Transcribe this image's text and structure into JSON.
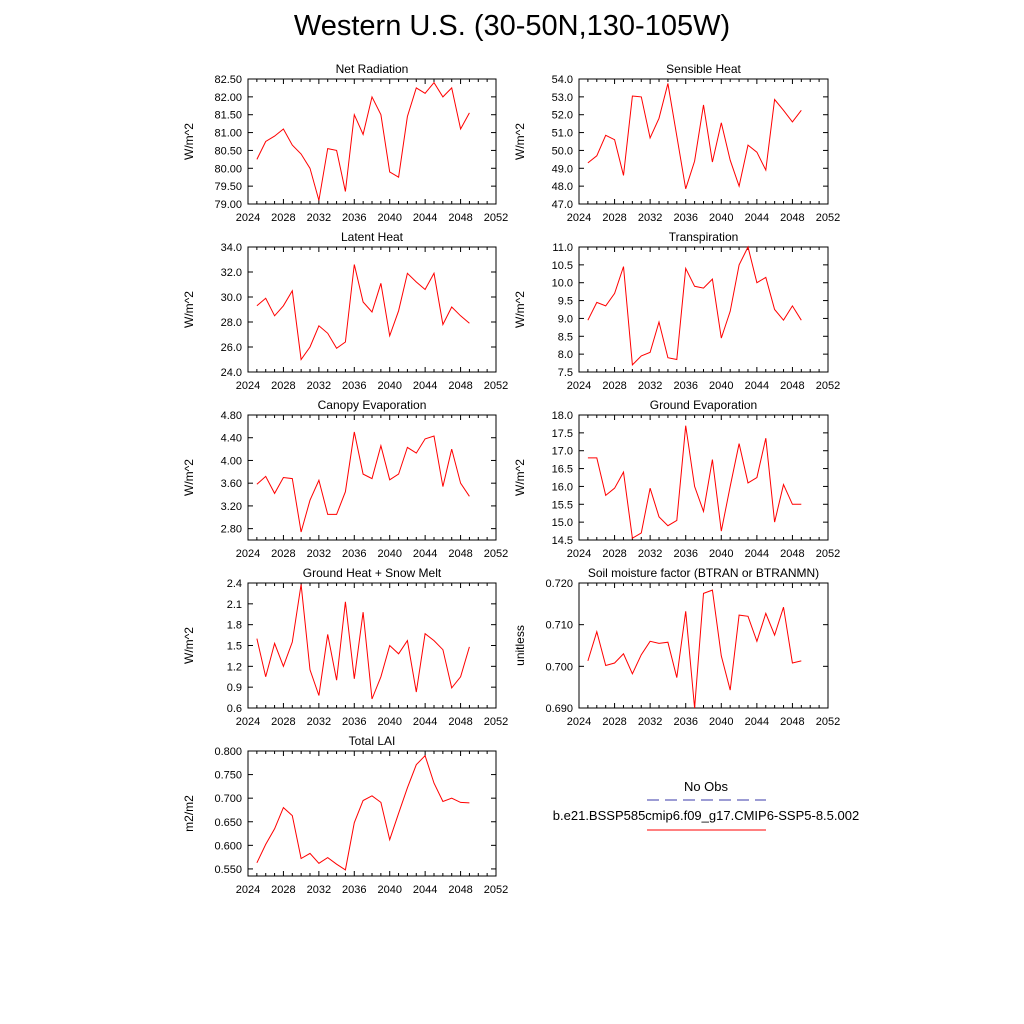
{
  "page_title": "Western U.S. (30-50N,130-105W)",
  "legend": {
    "obs_label": "No Obs",
    "obs_color": "#3a3aa8",
    "case_label": "b.e21.BSSP585cmip6.f09_g17.CMIP6-SSP5-8.5.002",
    "case_color": "#ff0000"
  },
  "chart_data": [
    {
      "type": "line",
      "title": "Net Radiation",
      "ylabel": "W/m^2",
      "xlim": [
        2024,
        2052
      ],
      "xticks": [
        2024,
        2028,
        2032,
        2036,
        2040,
        2044,
        2048,
        2052
      ],
      "xticks_labels": [
        "2024",
        "2028",
        "2032",
        "2036",
        "2040",
        "2044",
        "2048",
        "2052"
      ],
      "ylim": [
        79.0,
        82.5
      ],
      "yticks_labels": [
        "79.00",
        "79.50",
        "80.00",
        "80.50",
        "81.00",
        "81.50",
        "82.00",
        "82.50"
      ],
      "x": [
        2025,
        2026,
        2027,
        2028,
        2029,
        2030,
        2031,
        2032,
        2033,
        2034,
        2035,
        2036,
        2037,
        2038,
        2039,
        2040,
        2041,
        2042,
        2043,
        2044,
        2045,
        2046,
        2047,
        2048,
        2049
      ],
      "values": [
        80.25,
        80.75,
        80.9,
        81.1,
        80.65,
        80.4,
        80.0,
        79.1,
        80.55,
        80.5,
        79.35,
        81.5,
        80.95,
        82.0,
        81.5,
        79.9,
        79.75,
        81.45,
        82.25,
        82.1,
        82.4,
        82.0,
        82.25,
        81.1,
        81.55
      ],
      "line_color": "#ff0000"
    },
    {
      "type": "line",
      "title": "Sensible Heat",
      "ylabel": "W/m^2",
      "xlim": [
        2024,
        2052
      ],
      "xticks": [
        2024,
        2028,
        2032,
        2036,
        2040,
        2044,
        2048,
        2052
      ],
      "xticks_labels": [
        "2024",
        "2028",
        "2032",
        "2036",
        "2040",
        "2044",
        "2048",
        "2052"
      ],
      "ylim": [
        47.0,
        54.0
      ],
      "yticks_labels": [
        "47.0",
        "48.0",
        "49.0",
        "50.0",
        "51.0",
        "52.0",
        "53.0",
        "54.0"
      ],
      "x": [
        2025,
        2026,
        2027,
        2028,
        2029,
        2030,
        2031,
        2032,
        2033,
        2034,
        2035,
        2036,
        2037,
        2038,
        2039,
        2040,
        2041,
        2042,
        2043,
        2044,
        2045,
        2046,
        2047,
        2048,
        2049
      ],
      "values": [
        49.3,
        49.7,
        50.85,
        50.6,
        48.6,
        53.05,
        53.0,
        50.7,
        51.8,
        53.75,
        50.8,
        47.85,
        49.4,
        52.55,
        49.35,
        51.55,
        49.45,
        48.0,
        50.3,
        49.9,
        48.9,
        52.85,
        52.25,
        51.6,
        52.25
      ],
      "line_color": "#ff0000"
    },
    {
      "type": "line",
      "title": "Latent Heat",
      "ylabel": "W/m^2",
      "xlim": [
        2024,
        2052
      ],
      "xticks": [
        2024,
        2028,
        2032,
        2036,
        2040,
        2044,
        2048,
        2052
      ],
      "xticks_labels": [
        "2024",
        "2028",
        "2032",
        "2036",
        "2040",
        "2044",
        "2048",
        "2052"
      ],
      "ylim": [
        24.0,
        34.0
      ],
      "yticks_labels": [
        "24.0",
        "26.0",
        "28.0",
        "30.0",
        "32.0",
        "34.0"
      ],
      "x": [
        2025,
        2026,
        2027,
        2028,
        2029,
        2030,
        2031,
        2032,
        2033,
        2034,
        2035,
        2036,
        2037,
        2038,
        2039,
        2040,
        2041,
        2042,
        2043,
        2044,
        2045,
        2046,
        2047,
        2048,
        2049
      ],
      "values": [
        29.3,
        29.9,
        28.5,
        29.3,
        30.5,
        25.0,
        26.0,
        27.7,
        27.1,
        25.9,
        26.4,
        32.6,
        29.6,
        28.8,
        31.1,
        26.9,
        28.9,
        31.9,
        31.2,
        30.6,
        31.9,
        27.8,
        29.2,
        28.5,
        27.9
      ],
      "line_color": "#ff0000"
    },
    {
      "type": "line",
      "title": "Transpiration",
      "ylabel": "W/m^2",
      "xlim": [
        2024,
        2052
      ],
      "xticks": [
        2024,
        2028,
        2032,
        2036,
        2040,
        2044,
        2048,
        2052
      ],
      "xticks_labels": [
        "2024",
        "2028",
        "2032",
        "2036",
        "2040",
        "2044",
        "2048",
        "2052"
      ],
      "ylim": [
        7.5,
        11.0
      ],
      "yticks_labels": [
        "7.5",
        "8.0",
        "8.5",
        "9.0",
        "9.5",
        "10.0",
        "10.5",
        "11.0"
      ],
      "x": [
        2025,
        2026,
        2027,
        2028,
        2029,
        2030,
        2031,
        2032,
        2033,
        2034,
        2035,
        2036,
        2037,
        2038,
        2039,
        2040,
        2041,
        2042,
        2043,
        2044,
        2045,
        2046,
        2047,
        2048,
        2049
      ],
      "values": [
        8.95,
        9.45,
        9.35,
        9.7,
        10.45,
        7.7,
        7.95,
        8.05,
        8.9,
        7.9,
        7.85,
        10.4,
        9.9,
        9.85,
        10.1,
        8.45,
        9.2,
        10.5,
        11.0,
        10.0,
        10.15,
        9.25,
        8.95,
        9.35,
        8.95
      ],
      "line_color": "#ff0000"
    },
    {
      "type": "line",
      "title": "Canopy Evaporation",
      "ylabel": "W/m^2",
      "xlim": [
        2024,
        2052
      ],
      "xticks": [
        2024,
        2028,
        2032,
        2036,
        2040,
        2044,
        2048,
        2052
      ],
      "xticks_labels": [
        "2024",
        "2028",
        "2032",
        "2036",
        "2040",
        "2044",
        "2048",
        "2052"
      ],
      "ylim": [
        2.6,
        4.8
      ],
      "yticks_labels": [
        "2.80",
        "3.20",
        "3.60",
        "4.00",
        "4.40",
        "4.80"
      ],
      "x": [
        2025,
        2026,
        2027,
        2028,
        2029,
        2030,
        2031,
        2032,
        2033,
        2034,
        2035,
        2036,
        2037,
        2038,
        2039,
        2040,
        2041,
        2042,
        2043,
        2044,
        2045,
        2046,
        2047,
        2048,
        2049
      ],
      "values": [
        3.58,
        3.72,
        3.42,
        3.7,
        3.68,
        2.74,
        3.3,
        3.65,
        3.05,
        3.05,
        3.45,
        4.5,
        3.76,
        3.68,
        4.26,
        3.66,
        3.76,
        4.23,
        4.13,
        4.38,
        4.43,
        3.54,
        4.2,
        3.6,
        3.37
      ],
      "line_color": "#ff0000"
    },
    {
      "type": "line",
      "title": "Ground Evaporation",
      "ylabel": "W/m^2",
      "xlim": [
        2024,
        2052
      ],
      "xticks": [
        2024,
        2028,
        2032,
        2036,
        2040,
        2044,
        2048,
        2052
      ],
      "xticks_labels": [
        "2024",
        "2028",
        "2032",
        "2036",
        "2040",
        "2044",
        "2048",
        "2052"
      ],
      "ylim": [
        14.5,
        18.0
      ],
      "yticks_labels": [
        "14.5",
        "15.0",
        "15.5",
        "16.0",
        "16.5",
        "17.0",
        "17.5",
        "18.0"
      ],
      "x": [
        2025,
        2026,
        2027,
        2028,
        2029,
        2030,
        2031,
        2032,
        2033,
        2034,
        2035,
        2036,
        2037,
        2038,
        2039,
        2040,
        2041,
        2042,
        2043,
        2044,
        2045,
        2046,
        2047,
        2048,
        2049
      ],
      "values": [
        16.8,
        16.8,
        15.75,
        15.95,
        16.4,
        14.55,
        14.7,
        15.95,
        15.15,
        14.9,
        15.05,
        17.7,
        16.0,
        15.3,
        16.75,
        14.75,
        16.0,
        17.2,
        16.1,
        16.25,
        17.35,
        15.0,
        16.05,
        15.5,
        15.5
      ],
      "line_color": "#ff0000"
    },
    {
      "type": "line",
      "title": "Ground Heat + Snow Melt",
      "ylabel": "W/m^2",
      "xlim": [
        2024,
        2052
      ],
      "xticks": [
        2024,
        2028,
        2032,
        2036,
        2040,
        2044,
        2048,
        2052
      ],
      "xticks_labels": [
        "2024",
        "2028",
        "2032",
        "2036",
        "2040",
        "2044",
        "2048",
        "2052"
      ],
      "ylim": [
        0.6,
        2.4
      ],
      "yticks_labels": [
        "0.6",
        "0.9",
        "1.2",
        "1.5",
        "1.8",
        "2.1",
        "2.4"
      ],
      "x": [
        2025,
        2026,
        2027,
        2028,
        2029,
        2030,
        2031,
        2032,
        2033,
        2034,
        2035,
        2036,
        2037,
        2038,
        2039,
        2040,
        2041,
        2042,
        2043,
        2044,
        2045,
        2046,
        2047,
        2048,
        2049
      ],
      "values": [
        1.6,
        1.05,
        1.53,
        1.2,
        1.55,
        2.38,
        1.15,
        0.78,
        1.66,
        1.0,
        2.13,
        1.02,
        1.98,
        0.73,
        1.05,
        1.5,
        1.38,
        1.57,
        0.83,
        1.67,
        1.57,
        1.44,
        0.89,
        1.05,
        1.48
      ],
      "line_color": "#ff0000"
    },
    {
      "type": "line",
      "title": "Soil moisture factor (BTRAN or BTRANMN)",
      "ylabel": "unitless",
      "xlim": [
        2024,
        2052
      ],
      "xticks": [
        2024,
        2028,
        2032,
        2036,
        2040,
        2044,
        2048,
        2052
      ],
      "xticks_labels": [
        "2024",
        "2028",
        "2032",
        "2036",
        "2040",
        "2044",
        "2048",
        "2052"
      ],
      "ylim": [
        0.69,
        0.72
      ],
      "yticks_labels": [
        "0.690",
        "0.700",
        "0.710",
        "0.720"
      ],
      "x": [
        2025,
        2026,
        2027,
        2028,
        2029,
        2030,
        2031,
        2032,
        2033,
        2034,
        2035,
        2036,
        2037,
        2038,
        2039,
        2040,
        2041,
        2042,
        2043,
        2044,
        2045,
        2046,
        2047,
        2048,
        2049
      ],
      "values": [
        0.7013,
        0.7083,
        0.7002,
        0.7008,
        0.703,
        0.6982,
        0.7028,
        0.706,
        0.7055,
        0.7058,
        0.6973,
        0.7132,
        0.69,
        0.7175,
        0.7183,
        0.7025,
        0.6943,
        0.7123,
        0.712,
        0.706,
        0.7127,
        0.7075,
        0.7142,
        0.7008,
        0.7013
      ],
      "line_color": "#ff0000"
    },
    {
      "type": "line",
      "title": "Total LAI",
      "ylabel": "m2/m2",
      "xlim": [
        2024,
        2052
      ],
      "xticks": [
        2024,
        2028,
        2032,
        2036,
        2040,
        2044,
        2048,
        2052
      ],
      "xticks_labels": [
        "2024",
        "2028",
        "2032",
        "2036",
        "2040",
        "2044",
        "2048",
        "2052"
      ],
      "ylim": [
        0.535,
        0.8
      ],
      "yticks_labels": [
        "0.550",
        "0.600",
        "0.650",
        "0.700",
        "0.750",
        "0.800"
      ],
      "x": [
        2025,
        2026,
        2027,
        2028,
        2029,
        2030,
        2031,
        2032,
        2033,
        2034,
        2035,
        2036,
        2037,
        2038,
        2039,
        2040,
        2041,
        2042,
        2043,
        2044,
        2045,
        2046,
        2047,
        2048,
        2049
      ],
      "values": [
        0.563,
        0.602,
        0.635,
        0.68,
        0.663,
        0.572,
        0.583,
        0.562,
        0.574,
        0.56,
        0.548,
        0.648,
        0.695,
        0.705,
        0.691,
        0.612,
        0.668,
        0.722,
        0.771,
        0.79,
        0.732,
        0.693,
        0.7,
        0.691,
        0.69
      ],
      "line_color": "#ff0000"
    }
  ]
}
